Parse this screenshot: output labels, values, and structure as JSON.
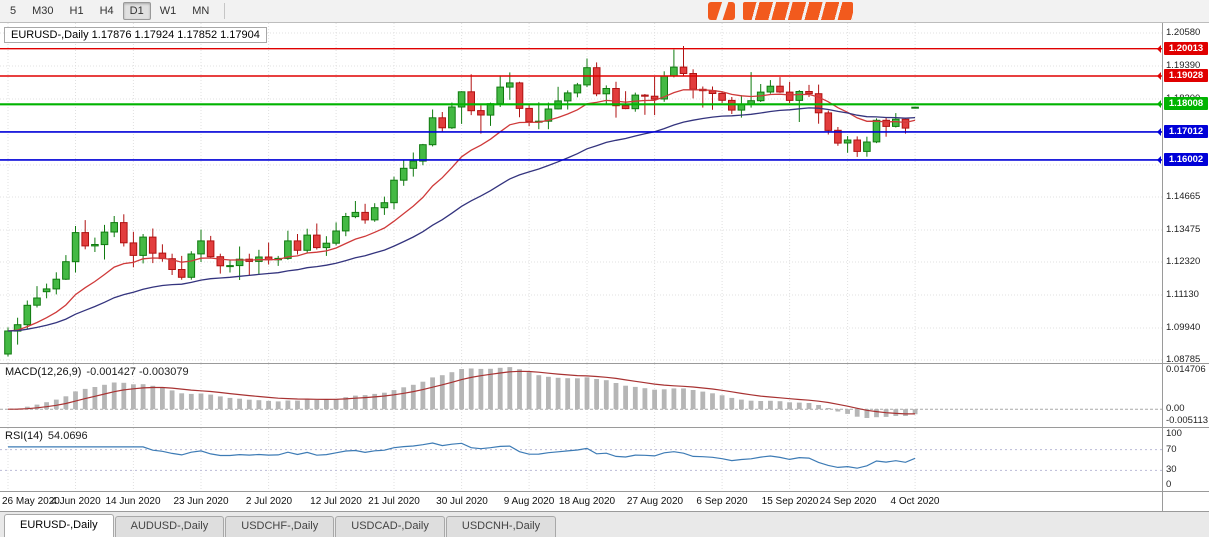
{
  "toolbar": {
    "timeframes": [
      "5",
      "M30",
      "H1",
      "H4",
      "D1",
      "W1",
      "MN"
    ],
    "active": "D1"
  },
  "colors": {
    "up": "#44b944",
    "up_border": "#0f7a0f",
    "down": "#e23d3d",
    "down_border": "#b01212",
    "ma_fast": "#cf3a3a",
    "ma_slow": "#34347e",
    "macd_hist": "#b6b6b6",
    "macd_signal": "#a83232",
    "rsi_line": "#3d7bb5",
    "grid": "#e0e0e0",
    "resistance": "#e00000",
    "support": "#0000d8",
    "current_line": "#00b400"
  },
  "chart": {
    "title": "EURUSD-,Daily 1.17876 1.17924 1.17852 1.17904"
  },
  "macd": {
    "label": "MACD(12,26,9)",
    "values": "-0.001427 -0.003079",
    "axis_labels": [
      {
        "v": 0.014706,
        "t": "0.014706"
      },
      {
        "v": 0,
        "t": "0.00"
      },
      {
        "v": -0.005113,
        "t": "-0.005113"
      }
    ]
  },
  "rsi": {
    "label": "RSI(14)",
    "value": "54.0696",
    "levels": [
      70,
      30
    ],
    "axis_labels": [
      {
        "v": 100,
        "t": "100"
      },
      {
        "v": 70,
        "t": "70"
      },
      {
        "v": 30,
        "t": "30"
      },
      {
        "v": 0,
        "t": "0"
      }
    ]
  },
  "tabs": {
    "items": [
      "EURUSD-,Daily",
      "AUDUSD-,Daily",
      "USDCHF-,Daily",
      "USDCAD-,Daily",
      "USDCNH-,Daily"
    ],
    "active": "EURUSD-,Daily"
  },
  "chart_data": {
    "type": "candlestick",
    "symbol": "EURUSD-",
    "timeframe": "Daily",
    "current_ohlc": {
      "open": 1.17876,
      "high": 1.17924,
      "low": 1.17852,
      "close": 1.17904
    },
    "ylim": [
      1.08677,
      1.20941
    ],
    "y_axis_labels": [
      1.2058,
      1.1939,
      1.182,
      1.14665,
      1.13475,
      1.1232,
      1.1113,
      1.0994,
      1.08785
    ],
    "y_grid": [
      1.2058,
      1.1939,
      1.182,
      1.1701,
      1.1582,
      1.14665,
      1.13475,
      1.1232,
      1.1113,
      1.0994,
      1.08785
    ],
    "x_tick_labels": [
      "26 May 2020",
      "4 Jun 2020",
      "14 Jun 2020",
      "23 Jun 2020",
      "2 Jul 2020",
      "12 Jul 2020",
      "21 Jul 2020",
      "30 Jul 2020",
      "9 Aug 2020",
      "18 Aug 2020",
      "27 Aug 2020",
      "6 Sep 2020",
      "15 Sep 2020",
      "24 Sep 2020",
      "4 Oct 2020"
    ],
    "hlines": [
      {
        "price": 1.20013,
        "label": "1.20013",
        "color": "#e00000",
        "width": 1.4
      },
      {
        "price": 1.19028,
        "label": "1.19028",
        "color": "#e00000",
        "width": 1.4
      },
      {
        "price": 1.18008,
        "label": "1.18008",
        "color": "#00b400",
        "width": 2.2
      },
      {
        "price": 1.17012,
        "label": "1.17012",
        "color": "#0000d8",
        "width": 1.6
      },
      {
        "price": 1.16002,
        "label": "1.16002",
        "color": "#0000d8",
        "width": 1.6
      }
    ],
    "overlays": [
      {
        "name": "ma-fast",
        "period": 13,
        "color": "#cf3a3a"
      },
      {
        "name": "ma-slow",
        "period": 34,
        "color": "#34347e"
      }
    ],
    "indicators": [
      {
        "type": "MACD",
        "params": [
          12,
          26,
          9
        ],
        "display": [
          -0.001427,
          -0.003079
        ],
        "window_range": [
          0.014706,
          -0.005113
        ]
      },
      {
        "type": "RSI",
        "params": [
          14
        ],
        "display": 54.0696,
        "levels": [
          70,
          30
        ],
        "range": [
          0,
          100
        ]
      }
    ],
    "candles": [
      [
        1.09,
        1.0996,
        1.0891,
        1.0983
      ],
      [
        1.0983,
        1.1031,
        1.0934,
        1.1006
      ],
      [
        1.1006,
        1.1093,
        1.0992,
        1.1076
      ],
      [
        1.1076,
        1.1145,
        1.1068,
        1.1102
      ],
      [
        1.1125,
        1.1154,
        1.1101,
        1.1135
      ],
      [
        1.1135,
        1.1195,
        1.1115,
        1.117
      ],
      [
        1.117,
        1.1257,
        1.1167,
        1.1233
      ],
      [
        1.1233,
        1.1362,
        1.1194,
        1.1338
      ],
      [
        1.1338,
        1.1383,
        1.1278,
        1.129
      ],
      [
        1.129,
        1.132,
        1.1268,
        1.1295
      ],
      [
        1.1295,
        1.1366,
        1.1241,
        1.134
      ],
      [
        1.134,
        1.1398,
        1.1322,
        1.1374
      ],
      [
        1.1374,
        1.1404,
        1.1288,
        1.1301
      ],
      [
        1.1301,
        1.1341,
        1.1213,
        1.1256
      ],
      [
        1.1256,
        1.1333,
        1.1227,
        1.1322
      ],
      [
        1.1322,
        1.1353,
        1.1228,
        1.1264
      ],
      [
        1.1264,
        1.1296,
        1.1233,
        1.1244
      ],
      [
        1.1244,
        1.1262,
        1.1185,
        1.1205
      ],
      [
        1.1205,
        1.1254,
        1.1168,
        1.1177
      ],
      [
        1.1177,
        1.1271,
        1.1168,
        1.1261
      ],
      [
        1.1261,
        1.1349,
        1.1232,
        1.1308
      ],
      [
        1.1308,
        1.1326,
        1.1248,
        1.1251
      ],
      [
        1.1251,
        1.1262,
        1.119,
        1.1218
      ],
      [
        1.1218,
        1.124,
        1.1194,
        1.1219
      ],
      [
        1.1219,
        1.1288,
        1.1167,
        1.1242
      ],
      [
        1.1242,
        1.1262,
        1.1184,
        1.1234
      ],
      [
        1.1234,
        1.1276,
        1.1185,
        1.125
      ],
      [
        1.125,
        1.1302,
        1.1223,
        1.124
      ],
      [
        1.124,
        1.1254,
        1.1218,
        1.1245
      ],
      [
        1.1245,
        1.1345,
        1.124,
        1.1308
      ],
      [
        1.1308,
        1.1333,
        1.1259,
        1.1274
      ],
      [
        1.1274,
        1.1352,
        1.1266,
        1.1329
      ],
      [
        1.1329,
        1.1371,
        1.1277,
        1.1284
      ],
      [
        1.1284,
        1.1325,
        1.1254,
        1.13
      ],
      [
        1.13,
        1.1375,
        1.1292,
        1.1344
      ],
      [
        1.1344,
        1.1409,
        1.1325,
        1.1396
      ],
      [
        1.1396,
        1.1452,
        1.139,
        1.1411
      ],
      [
        1.1411,
        1.1442,
        1.137,
        1.1384
      ],
      [
        1.1384,
        1.1444,
        1.1377,
        1.1428
      ],
      [
        1.1428,
        1.1468,
        1.1402,
        1.1446
      ],
      [
        1.1446,
        1.154,
        1.1422,
        1.1527
      ],
      [
        1.1527,
        1.1601,
        1.1507,
        1.157
      ],
      [
        1.157,
        1.1627,
        1.154,
        1.1596
      ],
      [
        1.1596,
        1.1658,
        1.1581,
        1.1655
      ],
      [
        1.1655,
        1.1782,
        1.1649,
        1.1752
      ],
      [
        1.1752,
        1.1773,
        1.17,
        1.1716
      ],
      [
        1.1716,
        1.1807,
        1.1712,
        1.1791
      ],
      [
        1.1791,
        1.1848,
        1.173,
        1.1846
      ],
      [
        1.1846,
        1.1909,
        1.1762,
        1.1778
      ],
      [
        1.1778,
        1.1797,
        1.1695,
        1.1762
      ],
      [
        1.1762,
        1.1807,
        1.1723,
        1.1803
      ],
      [
        1.1803,
        1.1905,
        1.1791,
        1.1863
      ],
      [
        1.1863,
        1.1916,
        1.1817,
        1.1878
      ],
      [
        1.1878,
        1.1882,
        1.1754,
        1.1786
      ],
      [
        1.1786,
        1.1798,
        1.1722,
        1.1738
      ],
      [
        1.1738,
        1.1808,
        1.1711,
        1.174
      ],
      [
        1.174,
        1.1807,
        1.1711,
        1.1784
      ],
      [
        1.1784,
        1.1864,
        1.1782,
        1.1813
      ],
      [
        1.1813,
        1.1851,
        1.1782,
        1.1842
      ],
      [
        1.1842,
        1.1878,
        1.1826,
        1.1871
      ],
      [
        1.1871,
        1.1966,
        1.1863,
        1.1933
      ],
      [
        1.1933,
        1.1952,
        1.183,
        1.1839
      ],
      [
        1.1839,
        1.1869,
        1.1801,
        1.1858
      ],
      [
        1.1858,
        1.1882,
        1.1753,
        1.1796
      ],
      [
        1.1796,
        1.1848,
        1.1783,
        1.1785
      ],
      [
        1.1785,
        1.1843,
        1.1774,
        1.1834
      ],
      [
        1.1834,
        1.1838,
        1.1763,
        1.183
      ],
      [
        1.183,
        1.19,
        1.1762,
        1.182
      ],
      [
        1.182,
        1.192,
        1.181,
        1.1903
      ],
      [
        1.1903,
        1.1998,
        1.1898,
        1.1935
      ],
      [
        1.1935,
        1.2011,
        1.1902,
        1.1912
      ],
      [
        1.1912,
        1.1927,
        1.1822,
        1.1855
      ],
      [
        1.1855,
        1.1865,
        1.1789,
        1.185
      ],
      [
        1.185,
        1.1865,
        1.1781,
        1.184
      ],
      [
        1.184,
        1.1848,
        1.1805,
        1.1815
      ],
      [
        1.1815,
        1.1827,
        1.1766,
        1.178
      ],
      [
        1.178,
        1.1834,
        1.1753,
        1.1801
      ],
      [
        1.1801,
        1.1917,
        1.1789,
        1.1814
      ],
      [
        1.1814,
        1.1874,
        1.1809,
        1.1845
      ],
      [
        1.1845,
        1.1888,
        1.1839,
        1.1866
      ],
      [
        1.1866,
        1.1899,
        1.1842,
        1.1845
      ],
      [
        1.1845,
        1.1882,
        1.1805,
        1.1815
      ],
      [
        1.1815,
        1.1852,
        1.1737,
        1.1847
      ],
      [
        1.1847,
        1.1871,
        1.1827,
        1.1839
      ],
      [
        1.1839,
        1.1872,
        1.1731,
        1.177
      ],
      [
        1.177,
        1.1778,
        1.1692,
        1.1707
      ],
      [
        1.1707,
        1.1719,
        1.1651,
        1.1661
      ],
      [
        1.1661,
        1.1686,
        1.1626,
        1.1672
      ],
      [
        1.1672,
        1.1685,
        1.1611,
        1.1631
      ],
      [
        1.1631,
        1.1684,
        1.1612,
        1.1665
      ],
      [
        1.1665,
        1.175,
        1.1661,
        1.1743
      ],
      [
        1.1743,
        1.1755,
        1.1684,
        1.1721
      ],
      [
        1.1721,
        1.1769,
        1.1717,
        1.1747
      ],
      [
        1.1747,
        1.1751,
        1.1695,
        1.1715
      ],
      [
        1.17876,
        1.17924,
        1.17852,
        1.17904
      ]
    ]
  }
}
